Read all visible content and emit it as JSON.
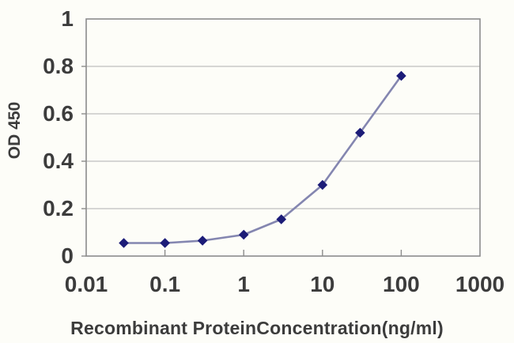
{
  "chart_data": {
    "type": "line",
    "title": "",
    "xlabel": "Recombinant ProteinConcentration(ng/ml)",
    "ylabel": "OD 450",
    "x_scale": "log",
    "xlim": [
      0.01,
      1000
    ],
    "ylim": [
      0,
      1
    ],
    "x": [
      0.03,
      0.1,
      0.3,
      1,
      3,
      10,
      30,
      100
    ],
    "series": [
      {
        "name": "OD450",
        "values": [
          0.055,
          0.055,
          0.065,
          0.09,
          0.155,
          0.3,
          0.52,
          0.76
        ],
        "marker": "diamond"
      }
    ],
    "x_ticks": {
      "labels": [
        "0.01",
        "0.1",
        "1",
        "10",
        "100",
        "1000"
      ],
      "values": [
        0.01,
        0.1,
        1,
        10,
        100,
        1000
      ]
    },
    "y_ticks": {
      "labels": [
        "0",
        "0.2",
        "0.4",
        "0.6",
        "0.8",
        "1"
      ],
      "values": [
        0,
        0.2,
        0.4,
        0.6,
        0.8,
        1
      ]
    },
    "grid": "horizontal",
    "legend_position": "none",
    "colors": {
      "line": "#8486b0",
      "marker": "#1c1c78",
      "grid": "#bfbfbf",
      "border": "#8c8c8c",
      "text": "#3c3c3c",
      "background": "#fdfdf8"
    }
  }
}
